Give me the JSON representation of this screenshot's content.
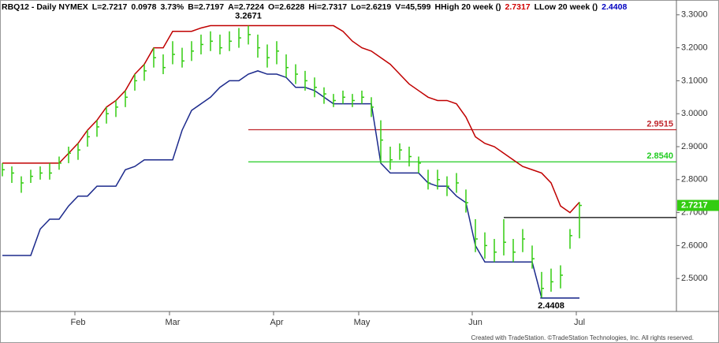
{
  "chart_data": {
    "type": "ohlc",
    "header": [
      {
        "text": "RBQ12 - Daily NYMEX",
        "color": "#000"
      },
      {
        "text": "L=2.7217",
        "color": "#000"
      },
      {
        "text": "0.0978",
        "color": "#000"
      },
      {
        "text": "3.73%",
        "color": "#000"
      },
      {
        "text": "B=2.7197",
        "color": "#000"
      },
      {
        "text": "A=2.7224",
        "color": "#000"
      },
      {
        "text": "O=2.6228",
        "color": "#000"
      },
      {
        "text": "Hi=2.7317",
        "color": "#000"
      },
      {
        "text": "Lo=2.6219",
        "color": "#000"
      },
      {
        "text": "V=45,599",
        "color": "#000"
      },
      {
        "text": "HHigh 20 week ()",
        "color": "#000"
      },
      {
        "text": "2.7317",
        "color": "#d00000"
      },
      {
        "text": "LLow 20 week ()",
        "color": "#000"
      },
      {
        "text": "2.4408",
        "color": "#0000c0"
      }
    ],
    "footer": "Created with TradeStation. ©TradeStation Technologies, Inc. All rights reserved.",
    "categories": [
      null,
      null,
      null,
      null,
      null,
      null,
      null,
      null,
      "Feb",
      null,
      null,
      null,
      null,
      null,
      null,
      null,
      null,
      null,
      "Mar",
      null,
      null,
      null,
      null,
      null,
      null,
      null,
      null,
      null,
      null,
      "Apr",
      null,
      null,
      null,
      null,
      null,
      null,
      null,
      null,
      "May",
      null,
      null,
      null,
      null,
      null,
      null,
      null,
      null,
      null,
      null,
      null,
      "Jun",
      null,
      null,
      null,
      null,
      null,
      null,
      null,
      null,
      null,
      null,
      "Jul"
    ],
    "color": "#33cc11",
    "high": [
      2.85,
      2.84,
      2.81,
      2.83,
      2.84,
      2.85,
      2.87,
      2.9,
      2.91,
      2.95,
      2.98,
      3.02,
      3.04,
      3.07,
      3.12,
      3.15,
      3.2,
      3.18,
      3.22,
      3.2,
      3.22,
      3.24,
      3.25,
      3.24,
      3.25,
      3.26,
      3.2671,
      3.24,
      3.21,
      3.22,
      3.18,
      3.15,
      3.13,
      3.11,
      3.08,
      3.06,
      3.07,
      3.06,
      3.07,
      3.05,
      2.98,
      2.9,
      2.91,
      2.9,
      2.87,
      2.83,
      2.83,
      2.81,
      2.82,
      2.77,
      2.68,
      2.64,
      2.62,
      2.68,
      2.62,
      2.65,
      2.6,
      2.52,
      2.53,
      2.54,
      2.65,
      2.7317
    ],
    "low": [
      2.81,
      2.79,
      2.76,
      2.79,
      2.8,
      2.8,
      2.83,
      2.85,
      2.86,
      2.9,
      2.93,
      2.97,
      2.99,
      3.02,
      3.07,
      3.1,
      3.14,
      3.12,
      3.15,
      3.14,
      3.16,
      3.18,
      3.19,
      3.18,
      3.19,
      3.2,
      3.21,
      3.17,
      3.14,
      3.15,
      3.11,
      3.09,
      3.07,
      3.05,
      3.03,
      3.02,
      3.03,
      3.02,
      3.03,
      2.99,
      2.85,
      2.83,
      2.86,
      2.84,
      2.82,
      2.77,
      2.77,
      2.75,
      2.76,
      2.7,
      2.58,
      2.56,
      2.55,
      2.57,
      2.55,
      2.58,
      2.53,
      2.4408,
      2.46,
      2.47,
      2.59,
      2.6219
    ],
    "close": [
      2.83,
      2.82,
      2.79,
      2.81,
      2.82,
      2.82,
      2.85,
      2.88,
      2.89,
      2.93,
      2.96,
      3.0,
      3.02,
      3.05,
      3.1,
      3.13,
      3.17,
      3.14,
      3.18,
      3.16,
      3.19,
      3.21,
      3.22,
      3.2,
      3.22,
      3.23,
      3.24,
      3.2,
      3.17,
      3.19,
      3.14,
      3.12,
      3.1,
      3.08,
      3.06,
      3.04,
      3.05,
      3.04,
      3.05,
      3.02,
      2.92,
      2.86,
      2.89,
      2.87,
      2.85,
      2.79,
      2.8,
      2.78,
      2.79,
      2.73,
      2.62,
      2.6,
      2.58,
      2.61,
      2.58,
      2.62,
      2.56,
      2.47,
      2.49,
      2.51,
      2.63,
      2.7217
    ],
    "series": [
      {
        "name": "HHigh 20 week ()",
        "color": "#c00000",
        "values": [
          2.85,
          2.85,
          2.85,
          2.85,
          2.85,
          2.85,
          2.85,
          2.88,
          2.91,
          2.95,
          2.98,
          3.02,
          3.04,
          3.07,
          3.12,
          3.15,
          3.2,
          3.2,
          3.25,
          3.25,
          3.25,
          3.26,
          3.2671,
          3.2671,
          3.2671,
          3.2671,
          3.2671,
          3.2671,
          3.2671,
          3.2671,
          3.2671,
          3.2671,
          3.2671,
          3.2671,
          3.2671,
          3.2671,
          3.25,
          3.22,
          3.2,
          3.19,
          3.17,
          3.15,
          3.12,
          3.09,
          3.07,
          3.05,
          3.04,
          3.04,
          3.03,
          2.99,
          2.93,
          2.91,
          2.9,
          2.88,
          2.86,
          2.84,
          2.83,
          2.82,
          2.79,
          2.72,
          2.7,
          2.7317
        ]
      },
      {
        "name": "LLow 20 week ()",
        "color": "#1c2a8c",
        "values": [
          2.57,
          2.57,
          2.57,
          2.57,
          2.65,
          2.68,
          2.68,
          2.72,
          2.75,
          2.75,
          2.78,
          2.78,
          2.78,
          2.83,
          2.84,
          2.86,
          2.86,
          2.86,
          2.86,
          2.95,
          3.01,
          3.03,
          3.05,
          3.08,
          3.1,
          3.1,
          3.12,
          3.13,
          3.12,
          3.12,
          3.11,
          3.08,
          3.08,
          3.07,
          3.05,
          3.03,
          3.03,
          3.03,
          3.03,
          3.03,
          2.85,
          2.82,
          2.82,
          2.82,
          2.82,
          2.79,
          2.78,
          2.78,
          2.75,
          2.73,
          2.6,
          2.55,
          2.55,
          2.55,
          2.55,
          2.55,
          2.55,
          2.4408,
          2.4408,
          2.4408,
          2.4408,
          2.4408
        ]
      }
    ],
    "levels": [
      {
        "value": 2.9515,
        "label": "2.9515",
        "color": "#c0272d"
      },
      {
        "value": 2.854,
        "label": "2.8540",
        "color": "#22cc22"
      },
      {
        "value": 2.685,
        "color": "#000000"
      }
    ],
    "ylim": [
      2.4,
      3.333
    ],
    "yticks": [
      {
        "value": 2.5,
        "label": "2.5000"
      },
      {
        "value": 2.6,
        "label": "2.6000"
      },
      {
        "value": 2.7,
        "label": "2.7000"
      },
      {
        "value": 2.8,
        "label": "2.8000"
      },
      {
        "value": 2.9,
        "label": "2.9000"
      },
      {
        "value": 3.0,
        "label": "3.0000"
      },
      {
        "value": 3.1,
        "label": "3.1000"
      },
      {
        "value": 3.2,
        "label": "3.2000"
      },
      {
        "value": 3.3,
        "label": "3.3000"
      }
    ]
  }
}
